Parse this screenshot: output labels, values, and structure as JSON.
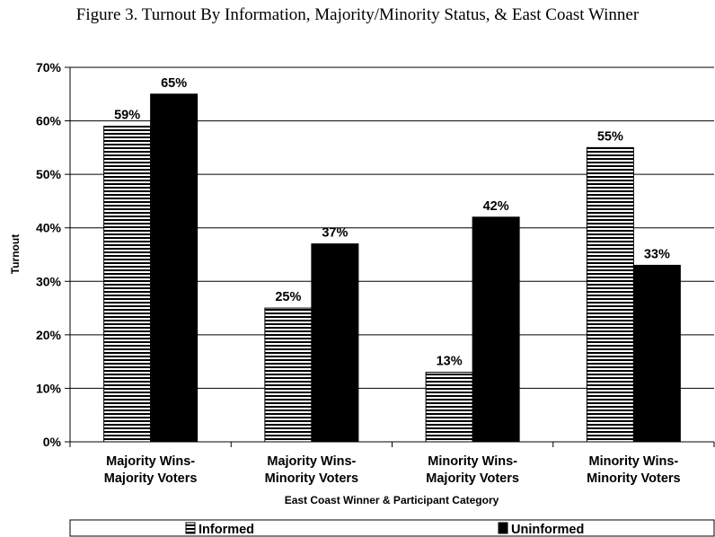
{
  "chart_data": {
    "type": "bar",
    "title": "Figure 3. Turnout By Information, Majority/Minority Status, & East Coast Winner",
    "xlabel": "East Coast Winner & Participant Category",
    "ylabel": "Turnout",
    "categories": [
      [
        "Majority Wins-",
        "Majority Voters"
      ],
      [
        "Majority Wins-",
        "Minority Voters"
      ],
      [
        "Minority Wins-",
        "Majority Voters"
      ],
      [
        "Minority Wins-",
        "Minority Voters"
      ]
    ],
    "series": [
      {
        "name": "Informed",
        "values": [
          59,
          25,
          13,
          55
        ],
        "fill": "horizontal-stripes"
      },
      {
        "name": "Uninformed",
        "values": [
          65,
          37,
          42,
          33
        ],
        "fill": "#000000"
      }
    ],
    "ylim": [
      0,
      70
    ],
    "yticks": [
      0,
      10,
      20,
      30,
      40,
      50,
      60,
      70
    ],
    "value_suffix": "%",
    "grid": true,
    "legend_position": "bottom"
  }
}
